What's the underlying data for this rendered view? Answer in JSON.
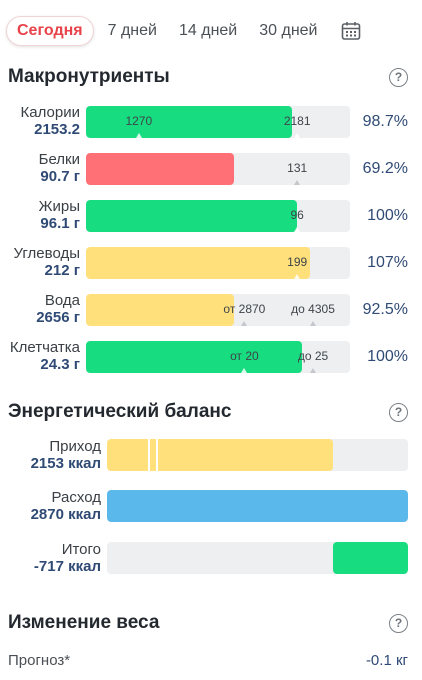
{
  "tabs": [
    {
      "label": "Сегодня",
      "active": true
    },
    {
      "label": "7 дней"
    },
    {
      "label": "14 дней"
    },
    {
      "label": "30 дней"
    }
  ],
  "icons": {
    "calendar": "calendar-icon",
    "help": "help-icon"
  },
  "colors": {
    "green": "#18dc80",
    "red": "#ff7076",
    "yellow": "#ffe07a",
    "blue": "#5bb8ea",
    "track": "#eeeff1",
    "accent": "#e8434b",
    "value": "#2f4a74"
  },
  "macros": {
    "title": "Макронутриенты",
    "help": "?",
    "rows": [
      {
        "name": "Калории",
        "value": "2153.2",
        "percent": "98.7%",
        "color": "green",
        "fill_fraction": 0.78,
        "marks": [
          "1270",
          "2181"
        ]
      },
      {
        "name": "Белки",
        "value": "90.7 г",
        "percent": "69.2%",
        "color": "red",
        "fill_fraction": 0.56,
        "marks": [
          "131"
        ]
      },
      {
        "name": "Жиры",
        "value": "96.1 г",
        "percent": "100%",
        "color": "green",
        "fill_fraction": 0.8,
        "marks": [
          "96"
        ]
      },
      {
        "name": "Углеводы",
        "value": "212 г",
        "percent": "107%",
        "color": "yellow",
        "fill_fraction": 0.85,
        "marks": [
          "199"
        ]
      },
      {
        "name": "Вода",
        "value": "2656 г",
        "percent": "92.5%",
        "color": "yellow",
        "fill_fraction": 0.56,
        "marks": [
          "от 2870",
          "до 4305"
        ]
      },
      {
        "name": "Клетчатка",
        "value": "24.3 г",
        "percent": "100%",
        "color": "green",
        "fill_fraction": 0.82,
        "marks": [
          "от 20",
          "до 25"
        ]
      }
    ]
  },
  "energy": {
    "title": "Энергетический баланс",
    "help": "?",
    "rows": [
      {
        "name": "Приход",
        "value": "2153 ккал",
        "color": "yellow",
        "fill_fraction": 0.75
      },
      {
        "name": "Расход",
        "value": "2870 ккал",
        "color": "blue",
        "fill_fraction": 1.0
      },
      {
        "name": "Итого",
        "value": "-717 ккал",
        "color": "green",
        "fill_fraction": 0.25
      }
    ]
  },
  "weight": {
    "title": "Изменение веса",
    "help": "?",
    "forecast_label": "Прогноз*",
    "forecast_value": "-0.1 кг"
  }
}
